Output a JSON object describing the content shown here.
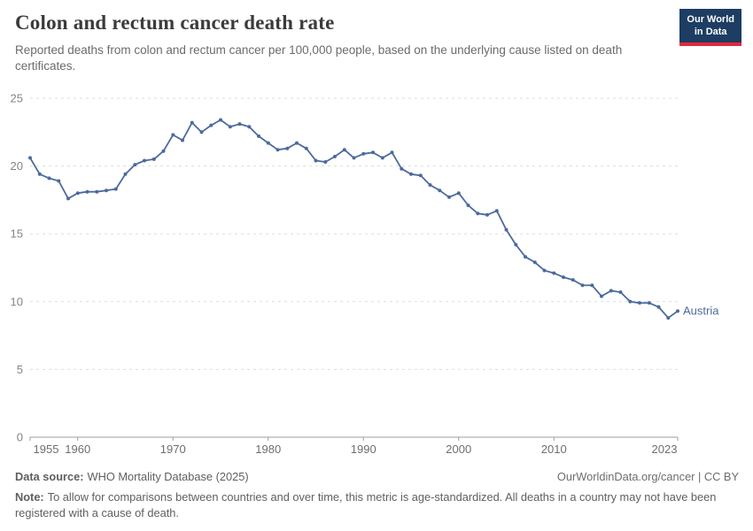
{
  "header": {
    "title": "Colon and rectum cancer death rate",
    "subtitle": "Reported deaths from colon and rectum cancer per 100,000 people, based on the underlying cause listed on death certificates.",
    "logo": {
      "line1": "Our World",
      "line2": "in Data"
    }
  },
  "chart_data": {
    "type": "line",
    "title": "Colon and rectum cancer death rate",
    "entity_label": "Austria",
    "xlabel": "",
    "ylabel": "",
    "ylim": [
      0,
      25
    ],
    "yticks": [
      0,
      5,
      10,
      15,
      20,
      25
    ],
    "xticks": [
      1955,
      1960,
      1970,
      1980,
      1990,
      2000,
      2010,
      2023
    ],
    "grid": "dashed-horizontal",
    "legend_position": "end-of-line",
    "colors": {
      "series": "#4C6A9C",
      "grid": "#dddddd",
      "axis": "#9e9e9e",
      "xtick_label": "#6e6e6e",
      "ytick_label": "#848484"
    },
    "series": [
      {
        "name": "Austria",
        "x": [
          1955,
          1956,
          1957,
          1958,
          1959,
          1960,
          1961,
          1962,
          1963,
          1964,
          1965,
          1966,
          1967,
          1968,
          1969,
          1970,
          1971,
          1972,
          1973,
          1974,
          1975,
          1976,
          1977,
          1978,
          1979,
          1980,
          1981,
          1982,
          1983,
          1984,
          1985,
          1986,
          1987,
          1988,
          1989,
          1990,
          1991,
          1992,
          1993,
          1994,
          1995,
          1996,
          1997,
          1998,
          1999,
          2000,
          2001,
          2002,
          2003,
          2004,
          2005,
          2006,
          2007,
          2008,
          2009,
          2010,
          2011,
          2012,
          2013,
          2014,
          2015,
          2016,
          2017,
          2018,
          2019,
          2020,
          2021,
          2022,
          2023
        ],
        "values": [
          20.6,
          19.4,
          19.1,
          18.9,
          17.6,
          18.0,
          18.1,
          18.1,
          18.2,
          18.3,
          19.4,
          20.1,
          20.4,
          20.5,
          21.1,
          22.3,
          21.9,
          23.2,
          22.5,
          23.0,
          23.4,
          22.9,
          23.1,
          22.9,
          22.2,
          21.7,
          21.2,
          21.3,
          21.7,
          21.3,
          20.4,
          20.3,
          20.7,
          21.2,
          20.6,
          20.9,
          21.0,
          20.6,
          21.0,
          19.8,
          19.4,
          19.3,
          18.6,
          18.2,
          17.7,
          18.0,
          17.1,
          16.5,
          16.4,
          16.7,
          15.3,
          14.2,
          13.3,
          12.9,
          12.3,
          12.1,
          11.8,
          11.6,
          11.2,
          11.2,
          10.4,
          10.8,
          10.7,
          10.0,
          9.9,
          9.9,
          9.6,
          8.8,
          9.3
        ]
      }
    ]
  },
  "footer": {
    "datasource_label": "Data source:",
    "datasource_text": "WHO Mortality Database (2025)",
    "attribution": "OurWorldinData.org/cancer | CC BY",
    "note_label": "Note:",
    "note_text": "To allow for comparisons between countries and over time, this metric is age-standardized. All deaths in a country may not have been registered with a cause of death."
  }
}
